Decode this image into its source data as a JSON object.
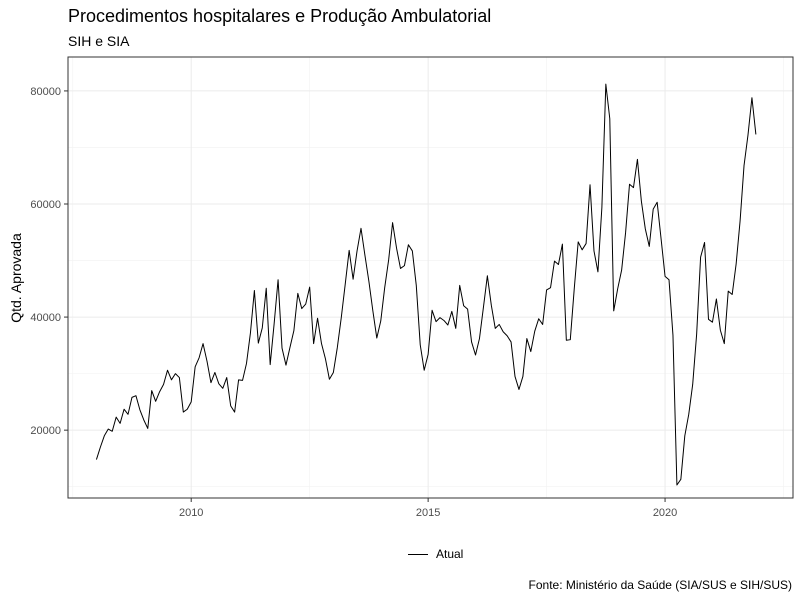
{
  "title": "Procedimentos hospitalares e Produção Ambulatorial",
  "subtitle": "SIH e SIA",
  "caption": "Fonte: Ministério da Saúde (SIA/SUS e SIH/SUS)",
  "chart_data": {
    "type": "line",
    "title": "Procedimentos hospitalares e Produção Ambulatorial",
    "subtitle": "SIH e SIA",
    "xlabel": "",
    "ylabel": "Qtd. Aprovada",
    "xlim": [
      2007.4,
      2022.7
    ],
    "ylim": [
      8000,
      86000
    ],
    "x_ticks": [
      2010,
      2015,
      2020
    ],
    "x_tick_labels": [
      "2010",
      "2015",
      "2020"
    ],
    "y_ticks": [
      20000,
      40000,
      60000,
      80000
    ],
    "y_tick_labels": [
      "20000",
      "40000",
      "60000",
      "80000"
    ],
    "grid": true,
    "legend_position": "bottom",
    "line_color": "#000000",
    "series": [
      {
        "name": "Atual",
        "start_year": 2008,
        "start_month": 1,
        "values": [
          14800,
          17000,
          19000,
          20200,
          19800,
          22300,
          21200,
          23700,
          22800,
          25800,
          26100,
          23600,
          21800,
          20300,
          27000,
          25100,
          26800,
          28100,
          30600,
          28900,
          30000,
          29300,
          23200,
          23700,
          25000,
          31200,
          32800,
          35300,
          32200,
          28400,
          30200,
          28200,
          27400,
          29300,
          24300,
          23200,
          28900,
          28800,
          31800,
          37200,
          44700,
          35400,
          38100,
          45100,
          31600,
          38800,
          46600,
          34500,
          31500,
          34600,
          37600,
          44200,
          41500,
          42300,
          45300,
          35300,
          39800,
          35300,
          32600,
          29000,
          30200,
          34600,
          39900,
          45800,
          51800,
          46700,
          51700,
          55700,
          50900,
          46300,
          41100,
          36300,
          39300,
          45200,
          50100,
          56700,
          52200,
          48600,
          49100,
          52800,
          51700,
          45600,
          35100,
          30600,
          33400,
          41200,
          39200,
          39900,
          39400,
          38600,
          41000,
          38000,
          45600,
          42000,
          41400,
          35600,
          33300,
          36200,
          41700,
          47300,
          42100,
          38000,
          38700,
          37400,
          36700,
          35600,
          29500,
          27200,
          29500,
          36200,
          33900,
          37500,
          39700,
          38700,
          44800,
          45200,
          49900,
          49300,
          52900,
          35900,
          36000,
          45000,
          53300,
          51900,
          53000,
          63400,
          51700,
          48000,
          59400,
          81200,
          75100,
          41100,
          45000,
          48300,
          54900,
          63500,
          62900,
          67900,
          60500,
          55600,
          52500,
          59100,
          60300,
          53800,
          47200,
          46600,
          36800,
          10300,
          11300,
          19000,
          22800,
          28100,
          37000,
          50600,
          53200,
          39600,
          39100,
          43200,
          37700,
          35300,
          44600,
          44000,
          49400,
          57000,
          66800,
          72200,
          78800,
          72300
        ]
      }
    ]
  }
}
